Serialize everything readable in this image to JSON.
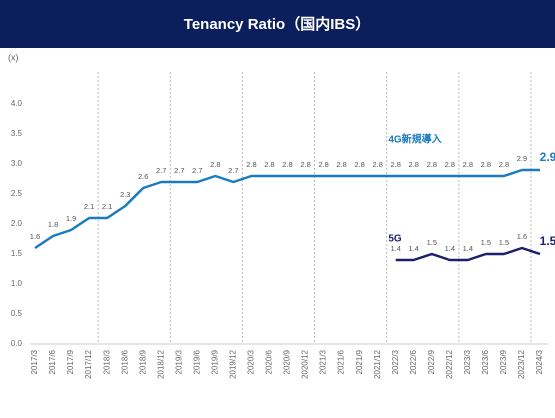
{
  "chart_data": {
    "type": "line",
    "title": "Tenancy Ratio（国内IBS）",
    "y_label": "(x)",
    "categories": [
      "2017/3",
      "2017/6",
      "2017/9",
      "2017/12",
      "2018/3",
      "2018/6",
      "2018/9",
      "2018/12",
      "2019/3",
      "2019/6",
      "2019/9",
      "2019/12",
      "2020/3",
      "2020/6",
      "2020/9",
      "2020/12",
      "2021/3",
      "2021/6",
      "2021/9",
      "2021/12",
      "2022/3",
      "2022/6",
      "2022/9",
      "2022/12",
      "2023/3",
      "2023/6",
      "2023/9",
      "2023/12",
      "2024/3"
    ],
    "series": [
      {
        "name": "4G新規導入",
        "color": "#1b7bbf",
        "values": [
          1.6,
          1.8,
          1.9,
          2.1,
          2.1,
          2.3,
          2.6,
          2.7,
          2.7,
          2.7,
          2.8,
          2.7,
          2.8,
          2.8,
          2.8,
          2.8,
          2.8,
          2.8,
          2.8,
          2.8,
          2.8,
          2.8,
          2.8,
          2.8,
          2.8,
          2.8,
          2.8,
          2.9,
          2.9
        ]
      },
      {
        "name": "5G",
        "color": "#1c1f6b",
        "values": [
          null,
          null,
          null,
          null,
          null,
          null,
          null,
          null,
          null,
          null,
          null,
          null,
          null,
          null,
          null,
          null,
          null,
          null,
          null,
          null,
          1.4,
          1.4,
          1.5,
          1.4,
          1.4,
          1.5,
          1.5,
          1.6,
          1.5
        ]
      }
    ],
    "ylim": [
      0,
      4.3
    ],
    "yticks": [
      {
        "value": 0,
        "label": "0.0"
      },
      {
        "value": 0.5,
        "label": "0.5"
      },
      {
        "value": 1,
        "label": "1.0"
      },
      {
        "value": 1.5,
        "label": "1.5"
      },
      {
        "value": 2,
        "label": "2.0"
      },
      {
        "value": 2.5,
        "label": "2.5"
      },
      {
        "value": 3,
        "label": "3.0"
      },
      {
        "value": 3.5,
        "label": "3.5"
      },
      {
        "value": 4,
        "label": "4.0"
      }
    ],
    "grid": false
  }
}
